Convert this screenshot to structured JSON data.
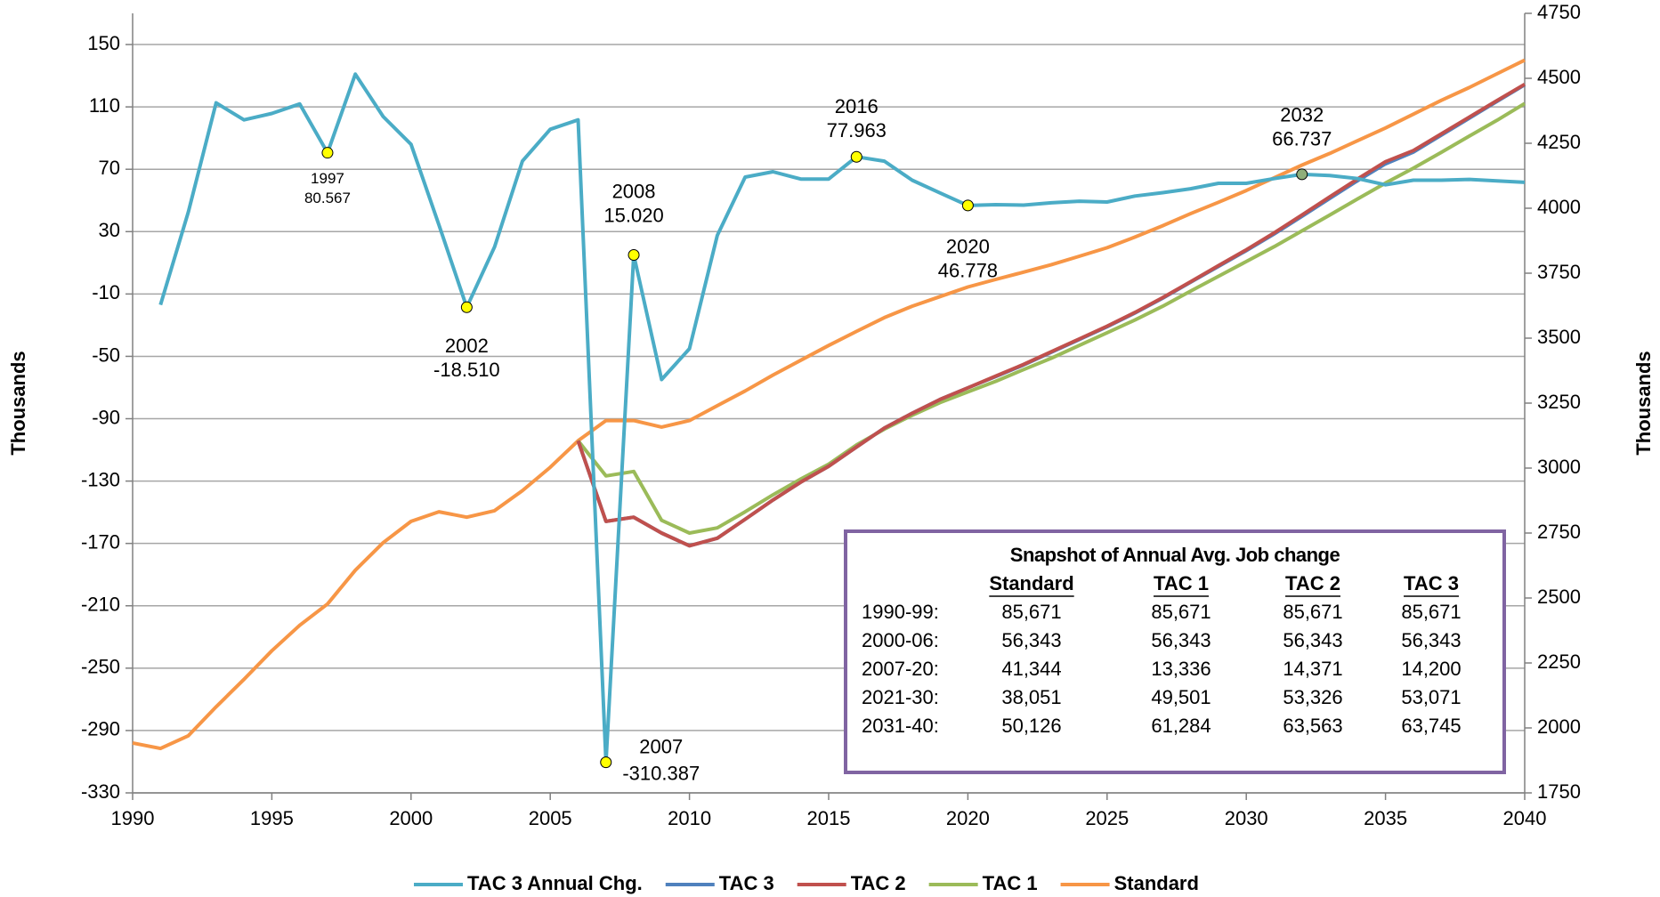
{
  "chart_data": {
    "type": "line",
    "y_label": "Thousands",
    "y2_label": "Thousands",
    "x": [
      1990,
      1991,
      1992,
      1993,
      1994,
      1995,
      1996,
      1997,
      1998,
      1999,
      2000,
      2001,
      2002,
      2003,
      2004,
      2005,
      2006,
      2007,
      2008,
      2009,
      2010,
      2011,
      2012,
      2013,
      2014,
      2015,
      2016,
      2017,
      2018,
      2019,
      2020,
      2021,
      2022,
      2023,
      2024,
      2025,
      2026,
      2027,
      2028,
      2029,
      2030,
      2031,
      2032,
      2033,
      2034,
      2035,
      2036,
      2037,
      2038,
      2039,
      2040
    ],
    "xlim": [
      1990,
      2040
    ],
    "xticks": [
      1990,
      1995,
      2000,
      2005,
      2010,
      2015,
      2020,
      2025,
      2030,
      2035,
      2040
    ],
    "ylim": [
      -330,
      170
    ],
    "yticks": [
      -330,
      -290,
      -250,
      -210,
      -170,
      -130,
      -90,
      -50,
      -10,
      30,
      70,
      110,
      150
    ],
    "y2lim": [
      1750,
      4750
    ],
    "y2ticks": [
      1750,
      2000,
      2250,
      2500,
      2750,
      3000,
      3250,
      3500,
      3750,
      4000,
      4250,
      4500,
      4750
    ],
    "grid": true,
    "legend": "bottom",
    "series": [
      {
        "name": "TAC 3 Annual Chg.",
        "color": "#4bacc6",
        "axis": "y",
        "values": [
          null,
          -17,
          42.6,
          112.6,
          101.7,
          105.8,
          111.9,
          80.567,
          131,
          103.8,
          86,
          34.4,
          -18.51,
          20.1,
          75.2,
          95.6,
          101.7,
          -310.387,
          15.02,
          -64.9,
          -45.1,
          27.6,
          65,
          68.4,
          63.7,
          63.7,
          77.963,
          75.2,
          63,
          54.8,
          46.778,
          47.3,
          47,
          48.5,
          49.5,
          49,
          52.8,
          55,
          57.5,
          61,
          61,
          64,
          66.737,
          66,
          64,
          60,
          63,
          63,
          63.5,
          62.5,
          61.6
        ],
        "value_labels": [
          null,
          null,
          null,
          null,
          null,
          null,
          null,
          "80.567",
          null,
          null,
          null,
          null,
          "-18.510",
          null,
          null,
          null,
          null,
          "-310.387",
          "15.020",
          null,
          null,
          null,
          null,
          null,
          null,
          null,
          "77.963",
          null,
          null,
          null,
          "46.778",
          null,
          null,
          null,
          null,
          null,
          null,
          null,
          null,
          null,
          null,
          null,
          "66.737",
          null,
          null,
          null,
          null,
          null,
          null,
          null,
          null
        ]
      },
      {
        "name": "TAC 3",
        "color": "#4f81bd",
        "axis": "y2",
        "values": [
          null,
          null,
          null,
          null,
          null,
          null,
          null,
          null,
          null,
          null,
          null,
          null,
          null,
          null,
          null,
          null,
          3105,
          2795,
          2811,
          2750,
          2701,
          2730,
          2803,
          2877,
          2946,
          3007,
          3081,
          3154,
          3211,
          3264,
          3309,
          3352,
          3397,
          3446,
          3495,
          3544,
          3597,
          3654,
          3715,
          3776,
          3837,
          3901,
          3969,
          4038,
          4106,
          4171,
          4216,
          4281,
          4346,
          4411,
          4475
        ]
      },
      {
        "name": "TAC 2",
        "color": "#c0504d",
        "axis": "y2",
        "values": [
          null,
          null,
          null,
          null,
          null,
          null,
          null,
          null,
          null,
          null,
          null,
          null,
          null,
          null,
          null,
          null,
          3105,
          2795,
          2811,
          2750,
          2701,
          2730,
          2803,
          2877,
          2946,
          3007,
          3081,
          3154,
          3211,
          3264,
          3309,
          3354,
          3399,
          3448,
          3497,
          3546,
          3599,
          3656,
          3717,
          3779,
          3840,
          3905,
          3974,
          4044,
          4113,
          4179,
          4222,
          4286,
          4350,
          4414,
          4477
        ]
      },
      {
        "name": "TAC 1",
        "color": "#9bbb59",
        "axis": "y2",
        "values": [
          null,
          null,
          null,
          null,
          null,
          null,
          null,
          null,
          null,
          null,
          null,
          null,
          null,
          null,
          null,
          null,
          3105,
          2970,
          2987,
          2799,
          2750,
          2770,
          2832,
          2897,
          2958,
          3015,
          3089,
          3150,
          3203,
          3252,
          3293,
          3334,
          3379,
          3423,
          3472,
          3521,
          3570,
          3623,
          3681,
          3738,
          3795,
          3852,
          3913,
          3974,
          4036,
          4097,
          4154,
          4215,
          4277,
          4338,
          4403
        ]
      },
      {
        "name": "Standard",
        "color": "#f79646",
        "axis": "y2",
        "values": [
          1942,
          1921,
          1970,
          2081,
          2187,
          2297,
          2395,
          2477,
          2607,
          2713,
          2795,
          2832,
          2811,
          2836,
          2913,
          3003,
          3105,
          3183,
          3183,
          3158,
          3183,
          3240,
          3297,
          3358,
          3415,
          3472,
          3526,
          3579,
          3623,
          3660,
          3697,
          3726,
          3754,
          3783,
          3815,
          3848,
          3889,
          3933,
          3979,
          4023,
          4068,
          4117,
          4166,
          4211,
          4260,
          4309,
          4362,
          4415,
          4464,
          4517,
          4570
        ]
      }
    ],
    "table": {
      "title": "Snapshot of Annual  Avg. Job change",
      "columns": [
        "Standard",
        "TAC 1",
        "TAC 2",
        "TAC 3"
      ],
      "rows": [
        {
          "label": "1990-99:",
          "cells": [
            "85,671",
            "85,671",
            "85,671",
            "85,671"
          ]
        },
        {
          "label": "2000-06:",
          "cells": [
            "56,343",
            "56,343",
            "56,343",
            "56,343"
          ]
        },
        {
          "label": "2007-20:",
          "cells": [
            "41,344",
            "13,336",
            "14,371",
            "14,200"
          ]
        },
        {
          "label": "2021-30:",
          "cells": [
            "38,051",
            "49,501",
            "53,326",
            "53,071"
          ]
        },
        {
          "label": "2031-40:",
          "cells": [
            "50,126",
            "61,284",
            "63,563",
            "63,745"
          ]
        }
      ]
    }
  }
}
